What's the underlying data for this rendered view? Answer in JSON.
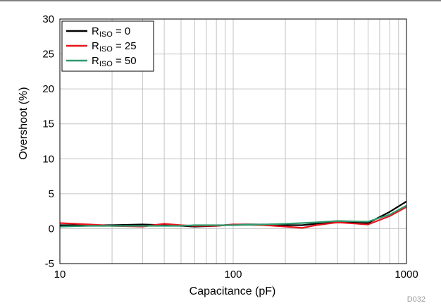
{
  "chart_data": {
    "type": "line",
    "title": "",
    "xlabel": "Capacitance (pF)",
    "ylabel": "Overshoot (%)",
    "x_scale": "log",
    "xlim": [
      10,
      1000
    ],
    "ylim": [
      -5,
      30
    ],
    "x_ticks": [
      10,
      100,
      1000
    ],
    "x_tick_labels": [
      "10",
      "100",
      "1000"
    ],
    "y_ticks": [
      -5,
      0,
      5,
      10,
      15,
      20,
      25,
      30
    ],
    "y_tick_labels": [
      "-5",
      "0",
      "5",
      "10",
      "15",
      "20",
      "25",
      "30"
    ],
    "grid": true,
    "legend_position": "top-left",
    "footnote": "D032",
    "series": [
      {
        "name_main": "R",
        "name_sub": "ISO",
        "name_suffix": " = 0",
        "color": "#000000",
        "x": [
          10,
          15,
          20,
          30,
          40,
          50,
          60,
          80,
          100,
          150,
          200,
          250,
          300,
          400,
          600,
          800,
          1000
        ],
        "y": [
          0.5,
          0.5,
          0.5,
          0.6,
          0.5,
          0.4,
          0.3,
          0.4,
          0.6,
          0.6,
          0.5,
          0.5,
          0.7,
          0.9,
          0.8,
          2.4,
          3.9
        ]
      },
      {
        "name_main": "R",
        "name_sub": "ISO",
        "name_suffix": " = 25",
        "color": "#e8141c",
        "x": [
          10,
          15,
          20,
          30,
          40,
          50,
          60,
          80,
          100,
          150,
          200,
          250,
          300,
          400,
          600,
          800,
          1000
        ],
        "y": [
          0.8,
          0.6,
          0.4,
          0.3,
          0.7,
          0.5,
          0.4,
          0.4,
          0.6,
          0.5,
          0.3,
          0.1,
          0.5,
          0.9,
          0.6,
          1.8,
          3.1
        ]
      },
      {
        "name_main": "R",
        "name_sub": "ISO",
        "name_suffix": " = 50",
        "color": "#2e9a6e",
        "x": [
          10,
          15,
          20,
          30,
          40,
          50,
          60,
          80,
          100,
          150,
          200,
          250,
          300,
          400,
          600,
          800,
          1000
        ],
        "y": [
          0.3,
          0.4,
          0.4,
          0.4,
          0.4,
          0.4,
          0.5,
          0.5,
          0.5,
          0.6,
          0.7,
          0.8,
          0.9,
          1.1,
          1.0,
          2.0,
          3.3
        ]
      }
    ]
  }
}
